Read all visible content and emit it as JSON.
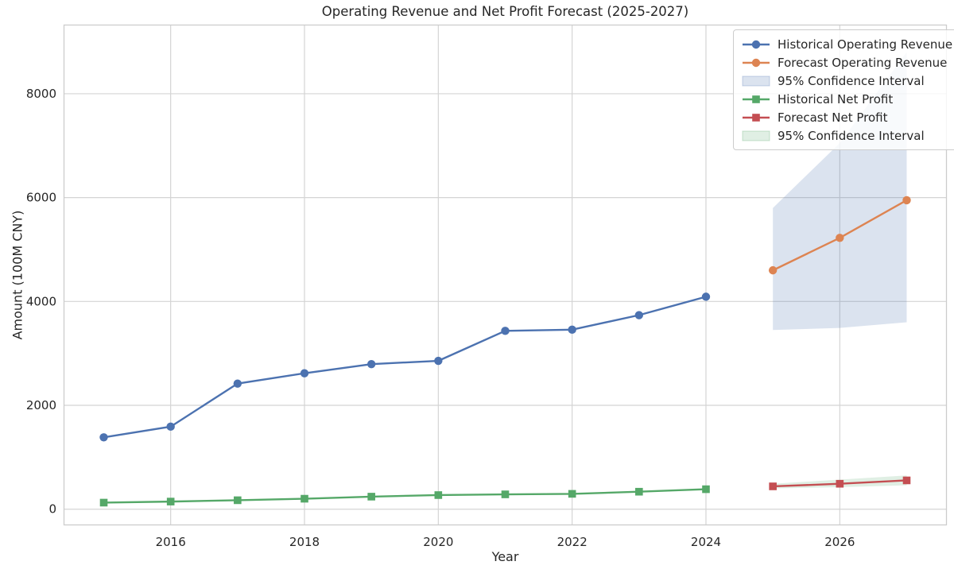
{
  "figure": {
    "title": "Operating Revenue and Net Profit Forecast (2025-2027)",
    "xlabel": "Year",
    "ylabel": "Amount (100M CNY)"
  },
  "style": {
    "background": "#ffffff",
    "grid_color": "#d4d4d4",
    "spine_color": "#cccccc",
    "text_color": "#262626",
    "tick_font_px": 15
  },
  "chart_data": {
    "type": "line",
    "title": "Operating Revenue and Net Profit Forecast (2025-2027)",
    "xlabel": "Year",
    "ylabel": "Amount (100M CNY)",
    "xlim": [
      2014.4,
      2027.6
    ],
    "ylim": [
      -310,
      9330
    ],
    "x_ticks": [
      2016,
      2018,
      2020,
      2022,
      2024,
      2026
    ],
    "y_ticks": [
      0,
      2000,
      4000,
      6000,
      8000
    ],
    "grid": true,
    "legend_position": "upper-right",
    "series": [
      {
        "name": "Historical Operating Revenue",
        "slug": "historical-operating-revenue",
        "type": "line",
        "marker": "circle",
        "color": "#4C72B0",
        "x": [
          2015,
          2016,
          2017,
          2018,
          2019,
          2020,
          2021,
          2022,
          2023,
          2024
        ],
        "y": [
          1384,
          1590,
          2419,
          2618,
          2794,
          2857,
          3434,
          3457,
          3737,
          4091
        ]
      },
      {
        "name": "Forecast Operating Revenue",
        "slug": "forecast-operating-revenue",
        "type": "line",
        "marker": "circle",
        "color": "#DD8452",
        "x": [
          2025,
          2026,
          2027
        ],
        "y": [
          4600,
          5225,
          5950
        ]
      },
      {
        "name": "95% Confidence Interval",
        "slug": "revenue-confidence-interval",
        "type": "band",
        "color": "#4C72B0",
        "opacity": 0.2,
        "x": [
          2025,
          2026,
          2027
        ],
        "lower": [
          3450,
          3490,
          3600
        ],
        "upper": [
          5800,
          7050,
          8800
        ]
      },
      {
        "name": "Historical Net Profit",
        "slug": "historical-net-profit",
        "type": "line",
        "marker": "square",
        "color": "#55A868",
        "x": [
          2015,
          2016,
          2017,
          2018,
          2019,
          2020,
          2021,
          2022,
          2023,
          2024
        ],
        "y": [
          127,
          147,
          173,
          202,
          242,
          272,
          286,
          296,
          337,
          385
        ]
      },
      {
        "name": "Forecast Net Profit",
        "slug": "forecast-net-profit",
        "type": "line",
        "marker": "square",
        "color": "#C44E52",
        "x": [
          2025,
          2026,
          2027
        ],
        "y": [
          440,
          490,
          555
        ]
      },
      {
        "name": "95% Confidence Interval",
        "slug": "profit-confidence-interval",
        "type": "band",
        "color": "#55A868",
        "opacity": 0.18,
        "x": [
          2025,
          2026,
          2027
        ],
        "lower": [
          400,
          425,
          460
        ],
        "upper": [
          490,
          570,
          650
        ]
      }
    ]
  }
}
